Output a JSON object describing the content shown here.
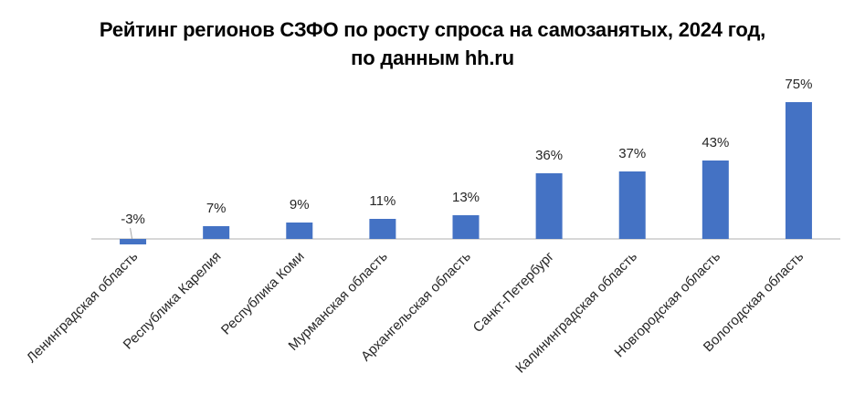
{
  "chart_data": {
    "type": "bar",
    "title_lines": [
      "Рейтинг регионов СЗФО по росту спроса на самозанятых, 2024 год,",
      "по данным hh.ru"
    ],
    "categories": [
      "Ленинградская область",
      "Республика Карелия",
      "Республика Коми",
      "Мурманская область",
      "Архангельская область",
      "Санкт-Петербург",
      "Калининградская область",
      "Новгородская область",
      "Вологодская область"
    ],
    "values": [
      -3,
      7,
      9,
      11,
      13,
      36,
      37,
      43,
      75
    ],
    "data_labels": [
      "-3%",
      "7%",
      "9%",
      "11%",
      "13%",
      "36%",
      "37%",
      "43%",
      "75%"
    ],
    "unit": "%",
    "ylim": [
      -3,
      75
    ],
    "grid": false,
    "legend": "none",
    "colors": {
      "bar": "#4472C4",
      "axis": "#BFBFBF",
      "text": "#262626"
    }
  }
}
